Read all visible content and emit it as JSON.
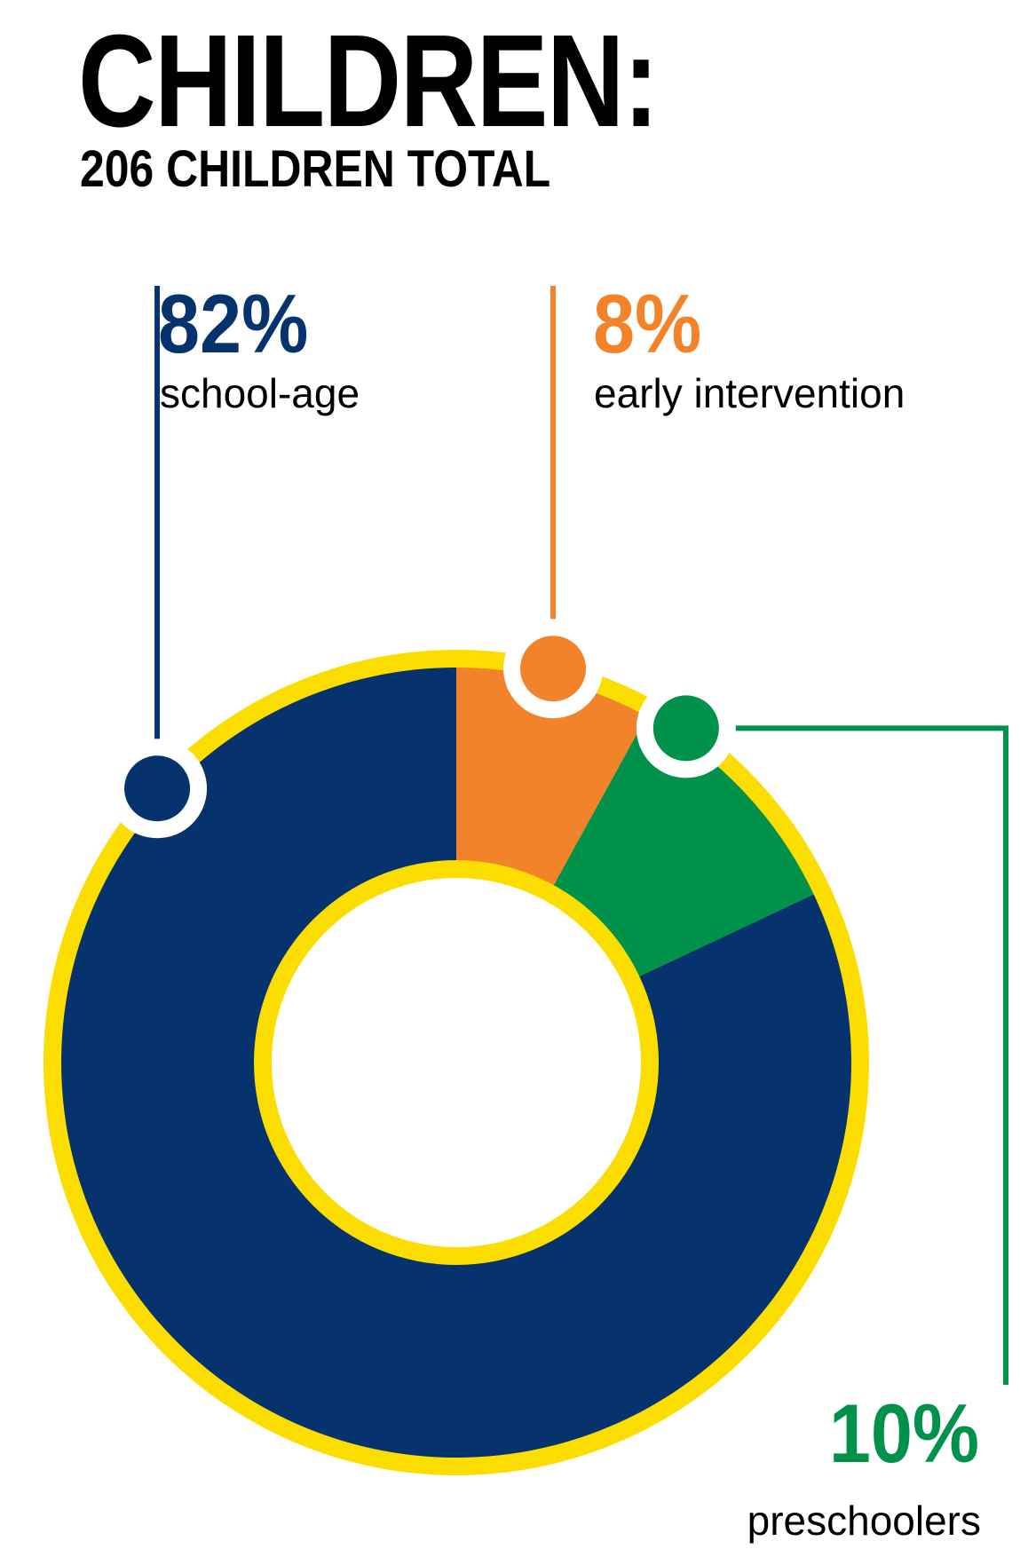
{
  "header": {
    "title": "CHILDREN:",
    "subtitle": "206 CHILDREN TOTAL"
  },
  "chart_data": {
    "type": "pie",
    "title": "CHILDREN:",
    "subtitle": "206 CHILDREN TOTAL",
    "categories": [
      "school-age",
      "early intervention",
      "preschoolers"
    ],
    "values": [
      82,
      8,
      10
    ],
    "labels": [
      "82%",
      "8%",
      "10%"
    ],
    "unit": "%",
    "colors": {
      "school-age": "#06336E",
      "early intervention": "#F2832A",
      "preschoolers": "#00914B",
      "ring": "#FBDD00"
    }
  }
}
